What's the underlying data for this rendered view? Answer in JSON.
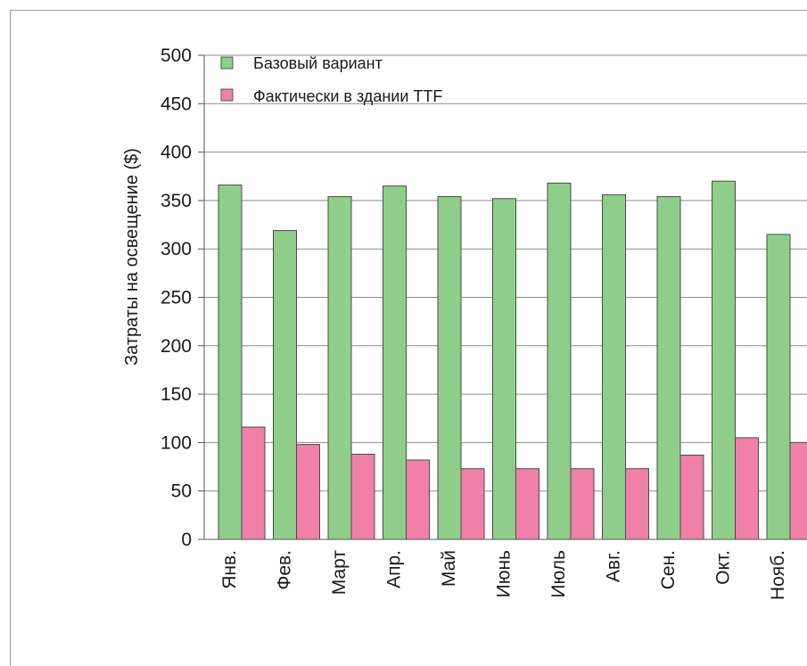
{
  "chart_data": {
    "type": "bar",
    "title": "",
    "xlabel": "",
    "ylabel": "Затраты на освещение ($)",
    "ylim": [
      0,
      500
    ],
    "yticks": [
      0,
      50,
      100,
      150,
      200,
      250,
      300,
      350,
      400,
      450,
      500
    ],
    "grid": true,
    "legend_position": "top-left",
    "categories": [
      "Янв.",
      "Фев.",
      "Март",
      "Апр.",
      "Май",
      "Июнь",
      "Июль",
      "Авг.",
      "Сен.",
      "Окт.",
      "Нояб."
    ],
    "series": [
      {
        "name": "Базовый вариант",
        "color": "#8fce8a",
        "values": [
          366,
          319,
          354,
          365,
          354,
          352,
          368,
          356,
          354,
          370,
          315
        ]
      },
      {
        "name": "Фактически в здании TTF",
        "color": "#f080a8",
        "values": [
          116,
          98,
          88,
          82,
          73,
          73,
          73,
          73,
          87,
          105,
          100
        ]
      }
    ]
  }
}
